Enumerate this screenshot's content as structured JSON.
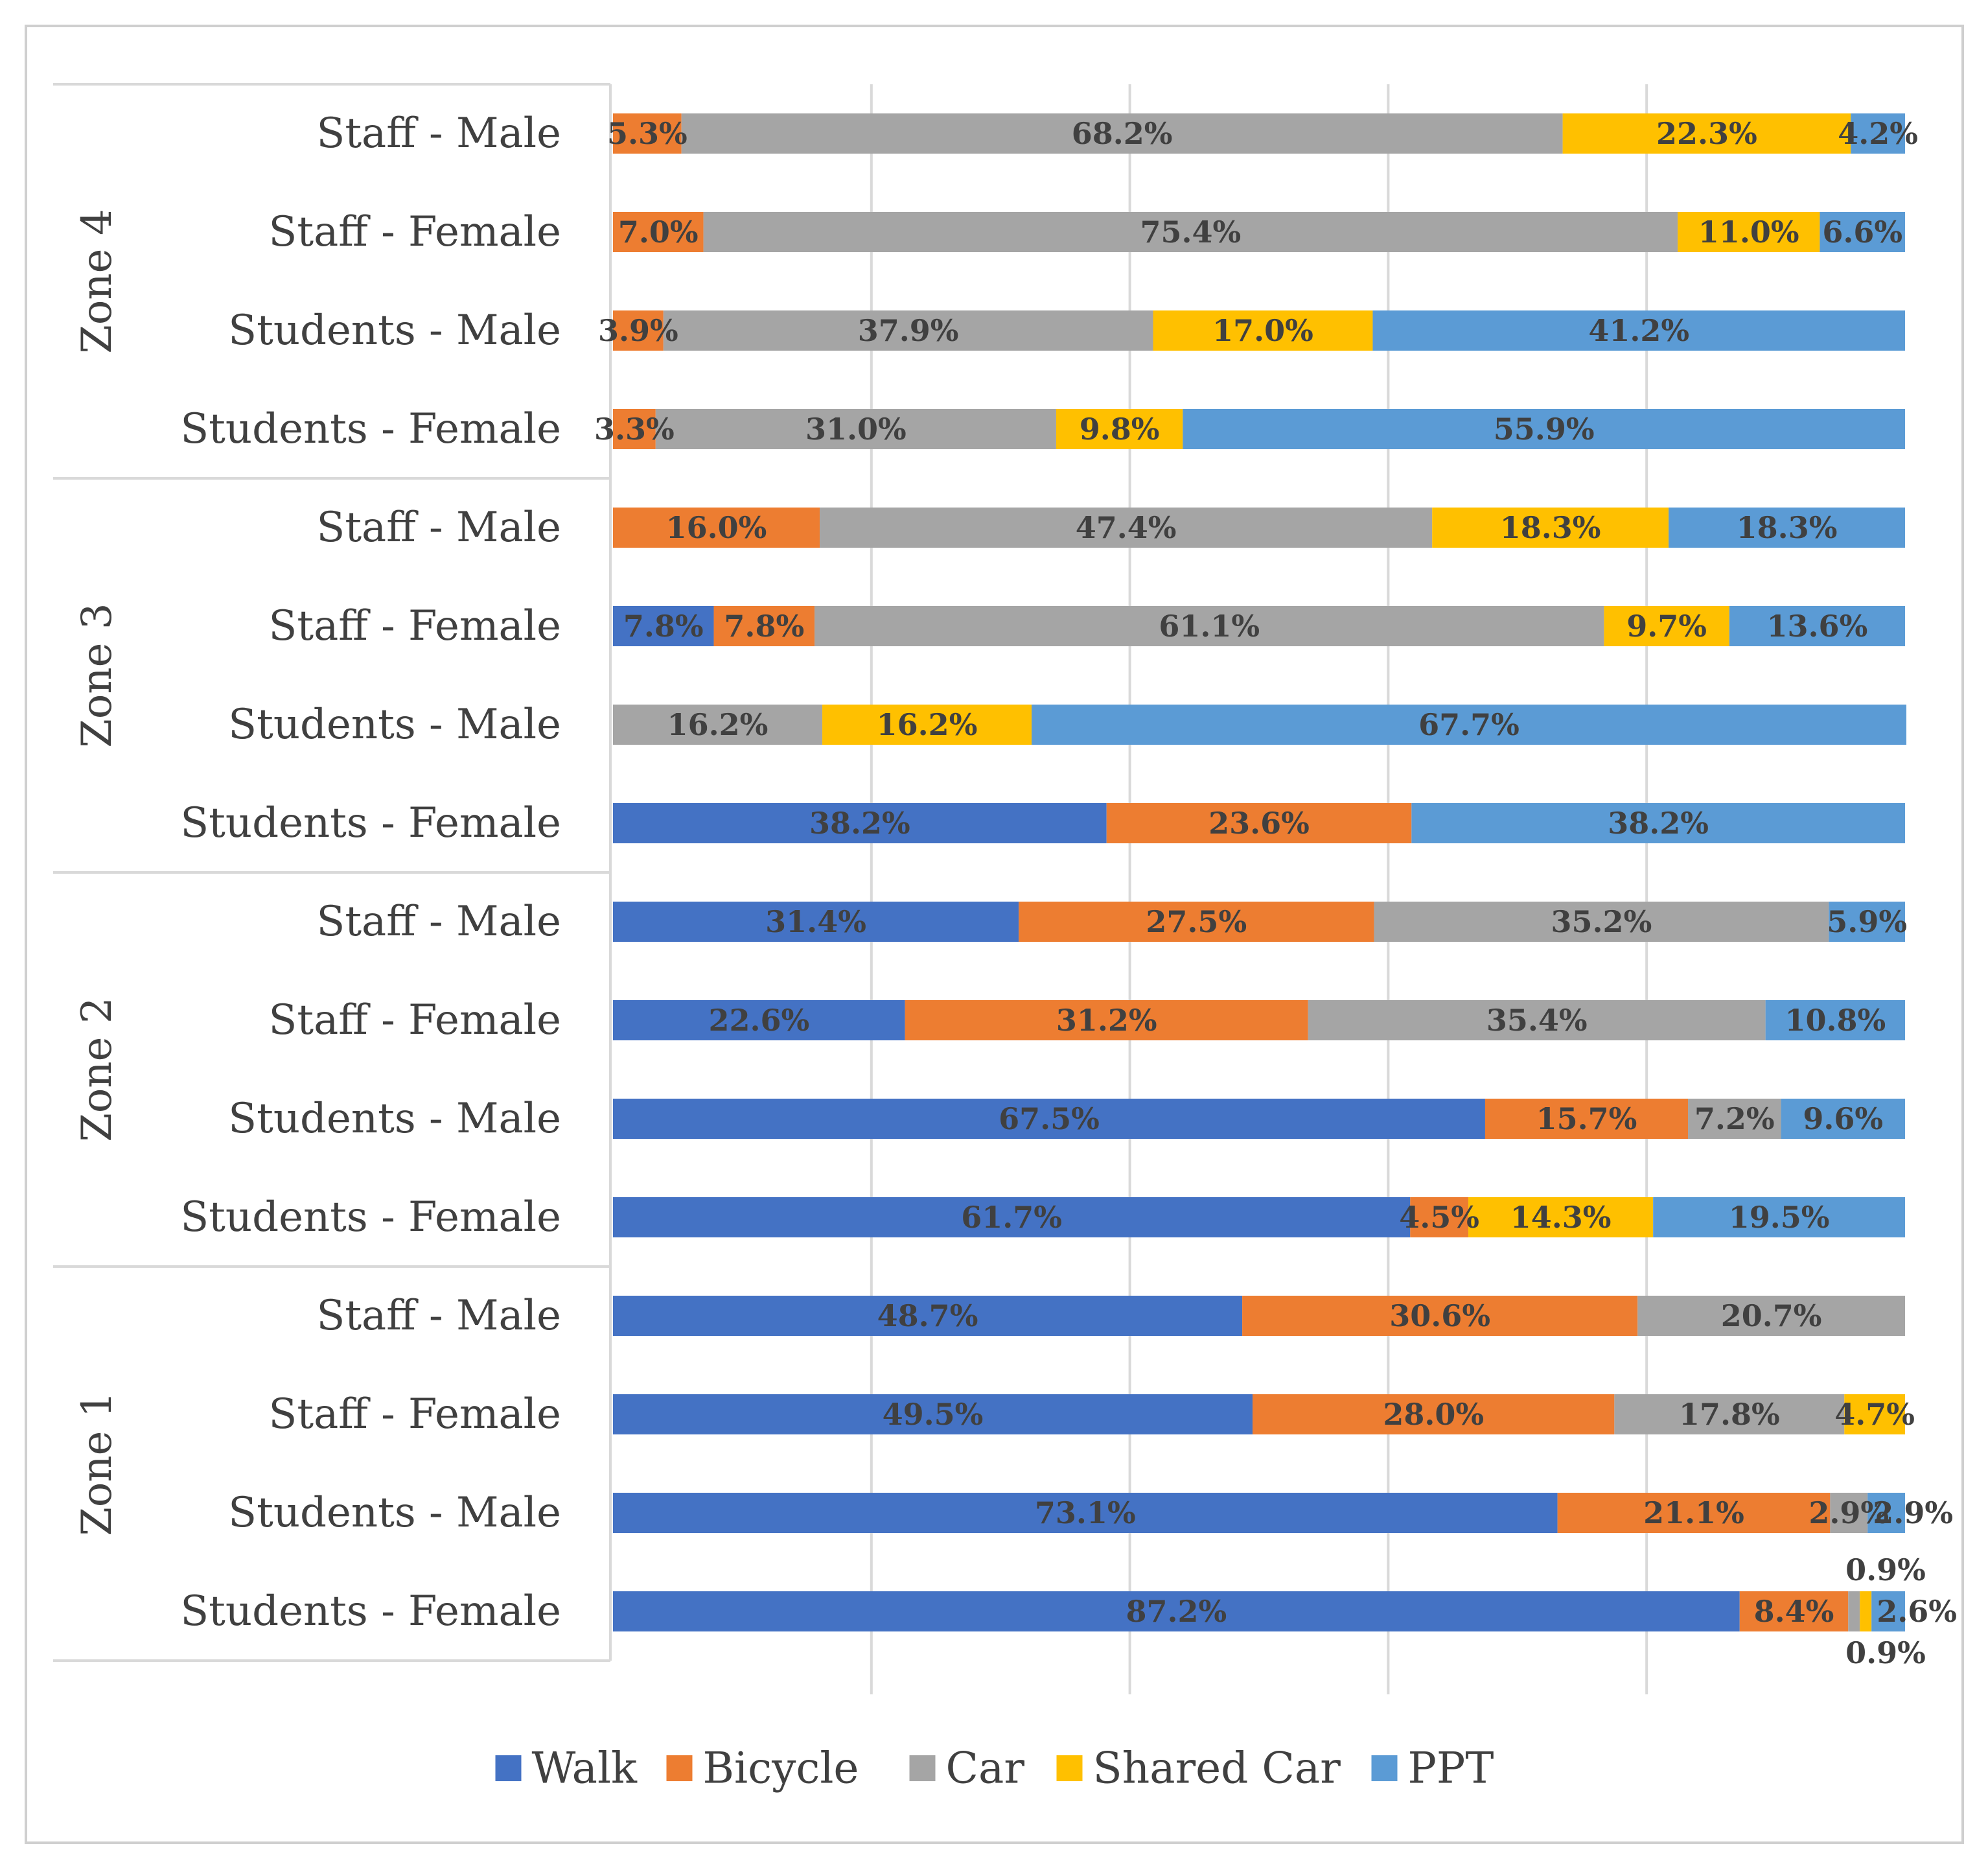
{
  "chart_data": {
    "type": "bar",
    "orientation": "horizontal",
    "stacked": "percent",
    "title": "",
    "xlabel": "",
    "ylabel": "",
    "xlim": [
      0,
      100
    ],
    "grid": true,
    "legend_position": "bottom",
    "series_names": [
      "Walk",
      "Bicycle",
      "Car",
      "Shared Car",
      "PPT"
    ],
    "colors": [
      "#4472C4",
      "#ED7D31",
      "#A5A5A5",
      "#FFC000",
      "#5B9BD5"
    ],
    "groups": [
      {
        "zone": "Zone 4",
        "rows": [
          {
            "label": "Staff - Male",
            "values": [
              0,
              5.3,
              68.2,
              22.3,
              4.2
            ],
            "labels": [
              "",
              "5.3%",
              "68.2%",
              "22.3%",
              "4.2%"
            ]
          },
          {
            "label": "Staff - Female",
            "values": [
              0,
              7.0,
              75.4,
              11.0,
              6.6
            ],
            "labels": [
              "",
              "7.0%",
              "75.4%",
              "11.0%",
              "6.6%"
            ]
          },
          {
            "label": "Students - Male",
            "values": [
              0,
              3.9,
              37.9,
              17.0,
              41.2
            ],
            "labels": [
              "",
              "3.9%",
              "37.9%",
              "17.0%",
              "41.2%"
            ]
          },
          {
            "label": "Students - Female",
            "values": [
              0,
              3.3,
              31.0,
              9.8,
              55.9
            ],
            "labels": [
              "",
              "3.3%",
              "31.0%",
              "9.8%",
              "55.9%"
            ]
          }
        ]
      },
      {
        "zone": "Zone 3",
        "rows": [
          {
            "label": "Staff - Male",
            "values": [
              0,
              16.0,
              47.4,
              18.3,
              18.3
            ],
            "labels": [
              "",
              "16.0%",
              "47.4%",
              "18.3%",
              "18.3%"
            ]
          },
          {
            "label": "Staff - Female",
            "values": [
              7.8,
              7.8,
              61.1,
              9.7,
              13.6
            ],
            "labels": [
              "7.8%",
              "7.8%",
              "61.1%",
              "9.7%",
              "13.6%"
            ]
          },
          {
            "label": "Students - Male",
            "values": [
              0,
              0,
              16.2,
              16.2,
              67.7
            ],
            "labels": [
              "",
              "",
              "16.2%",
              "16.2%",
              "67.7%"
            ]
          },
          {
            "label": "Students - Female",
            "values": [
              38.2,
              23.6,
              0,
              0,
              38.2
            ],
            "labels": [
              "38.2%",
              "23.6%",
              "",
              "",
              "38.2%"
            ]
          }
        ]
      },
      {
        "zone": "Zone 2",
        "rows": [
          {
            "label": "Staff - Male",
            "values": [
              31.4,
              27.5,
              35.2,
              0,
              5.9
            ],
            "labels": [
              "31.4%",
              "27.5%",
              "35.2%",
              "",
              "5.9%"
            ]
          },
          {
            "label": "Staff - Female",
            "values": [
              22.6,
              31.2,
              35.4,
              0,
              10.8
            ],
            "labels": [
              "22.6%",
              "31.2%",
              "35.4%",
              "",
              "10.8%"
            ]
          },
          {
            "label": "Students - Male",
            "values": [
              67.5,
              15.7,
              7.2,
              0,
              9.6
            ],
            "labels": [
              "67.5%",
              "15.7%",
              "7.2%",
              "",
              "9.6%"
            ]
          },
          {
            "label": "Students - Female",
            "values": [
              61.7,
              4.5,
              0,
              14.3,
              19.5
            ],
            "labels": [
              "61.7%",
              "4.5%",
              "",
              "14.3%",
              "19.5%"
            ]
          }
        ]
      },
      {
        "zone": "Zone 1",
        "rows": [
          {
            "label": "Staff - Male",
            "values": [
              48.7,
              30.6,
              20.7,
              0,
              0
            ],
            "labels": [
              "48.7%",
              "30.6%",
              "20.7%",
              "",
              ""
            ]
          },
          {
            "label": "Staff - Female",
            "values": [
              49.5,
              28.0,
              17.8,
              4.7,
              0
            ],
            "labels": [
              "49.5%",
              "28.0%",
              "17.8%",
              "4.7%",
              ""
            ]
          },
          {
            "label": "Students - Male",
            "values": [
              73.1,
              21.1,
              2.9,
              0,
              2.9
            ],
            "labels": [
              "73.1%",
              "21.1%",
              "2.9%",
              "",
              "2.9%"
            ]
          },
          {
            "label": "Students - Female",
            "values": [
              87.2,
              8.4,
              0.9,
              0.9,
              2.6
            ],
            "labels": [
              "87.2%",
              "8.4%",
              "0.9%",
              "0.9%",
              "2.6%"
            ]
          }
        ]
      }
    ]
  }
}
